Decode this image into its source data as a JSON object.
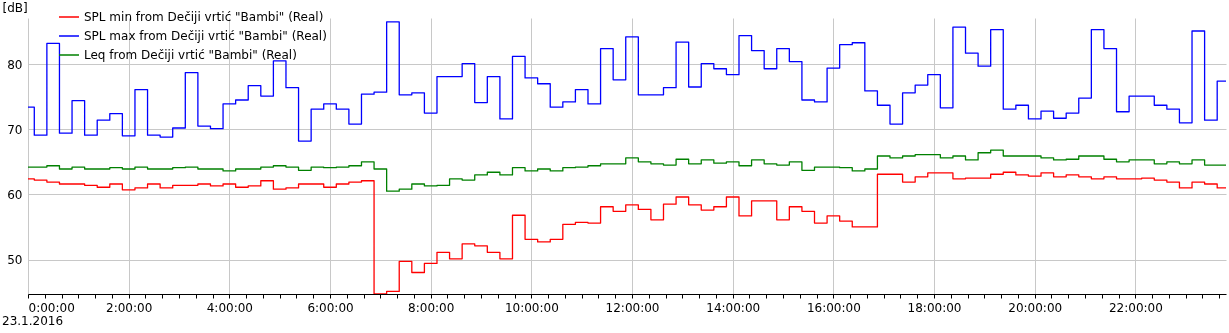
{
  "chart_data": {
    "type": "step",
    "ylabel": "[dB]",
    "annotations": [
      "23.1.2016"
    ],
    "xlim": [
      0,
      23.8
    ],
    "ylim": [
      44.7,
      87.1
    ],
    "yticks": [
      50,
      60,
      70,
      80
    ],
    "xticks": [
      {
        "value": 0,
        "label": "0:00:00"
      },
      {
        "value": 0.333,
        "label": null
      },
      {
        "value": 0.667,
        "label": null
      },
      {
        "value": 1,
        "label": null
      },
      {
        "value": 1.333,
        "label": null
      },
      {
        "value": 1.667,
        "label": null
      },
      {
        "value": 2,
        "label": "2:00:00"
      },
      {
        "value": 2.333,
        "label": null
      },
      {
        "value": 2.667,
        "label": null
      },
      {
        "value": 3,
        "label": null
      },
      {
        "value": 3.333,
        "label": null
      },
      {
        "value": 3.667,
        "label": null
      },
      {
        "value": 4,
        "label": "4:00:00"
      },
      {
        "value": 4.333,
        "label": null
      },
      {
        "value": 4.667,
        "label": null
      },
      {
        "value": 5,
        "label": null
      },
      {
        "value": 5.333,
        "label": null
      },
      {
        "value": 5.667,
        "label": null
      },
      {
        "value": 6,
        "label": "6:00:00"
      },
      {
        "value": 6.333,
        "label": null
      },
      {
        "value": 6.667,
        "label": null
      },
      {
        "value": 7,
        "label": null
      },
      {
        "value": 7.333,
        "label": null
      },
      {
        "value": 7.667,
        "label": null
      },
      {
        "value": 8,
        "label": "8:00:00"
      },
      {
        "value": 8.333,
        "label": null
      },
      {
        "value": 8.667,
        "label": null
      },
      {
        "value": 9,
        "label": null
      },
      {
        "value": 9.333,
        "label": null
      },
      {
        "value": 9.667,
        "label": null
      },
      {
        "value": 10,
        "label": "10:00:00"
      },
      {
        "value": 10.333,
        "label": null
      },
      {
        "value": 10.667,
        "label": null
      },
      {
        "value": 11,
        "label": null
      },
      {
        "value": 11.333,
        "label": null
      },
      {
        "value": 11.667,
        "label": null
      },
      {
        "value": 12,
        "label": "12:00:00"
      },
      {
        "value": 12.333,
        "label": null
      },
      {
        "value": 12.667,
        "label": null
      },
      {
        "value": 13,
        "label": null
      },
      {
        "value": 13.333,
        "label": null
      },
      {
        "value": 13.667,
        "label": null
      },
      {
        "value": 14,
        "label": "14:00:00"
      },
      {
        "value": 14.333,
        "label": null
      },
      {
        "value": 14.667,
        "label": null
      },
      {
        "value": 15,
        "label": null
      },
      {
        "value": 15.333,
        "label": null
      },
      {
        "value": 15.667,
        "label": null
      },
      {
        "value": 16,
        "label": "16:00:00"
      },
      {
        "value": 16.333,
        "label": null
      },
      {
        "value": 16.667,
        "label": null
      },
      {
        "value": 17,
        "label": null
      },
      {
        "value": 17.333,
        "label": null
      },
      {
        "value": 17.667,
        "label": null
      },
      {
        "value": 18,
        "label": "18:00:00"
      },
      {
        "value": 18.333,
        "label": null
      },
      {
        "value": 18.667,
        "label": null
      },
      {
        "value": 19,
        "label": null
      },
      {
        "value": 19.333,
        "label": null
      },
      {
        "value": 19.667,
        "label": null
      },
      {
        "value": 20,
        "label": "20:00:00"
      },
      {
        "value": 20.333,
        "label": null
      },
      {
        "value": 20.667,
        "label": null
      },
      {
        "value": 21,
        "label": null
      },
      {
        "value": 21.333,
        "label": null
      },
      {
        "value": 21.667,
        "label": null
      },
      {
        "value": 22,
        "label": "22:00:00"
      },
      {
        "value": 22.333,
        "label": null
      },
      {
        "value": 22.667,
        "label": null
      },
      {
        "value": 23,
        "label": null
      },
      {
        "value": 23.333,
        "label": null
      },
      {
        "value": 23.667,
        "label": null
      }
    ],
    "grid": true,
    "legend": "top left",
    "line_style": "solid",
    "marker": "none",
    "series": [
      {
        "name": "SPL min from Dečiji vrtić \"Bambi\" (Real)",
        "color": "#ff0000",
        "x": [
          0,
          0.125,
          0.375,
          0.625,
          1.125,
          1.375,
          1.625,
          1.875,
          2.125,
          2.375,
          2.625,
          2.875,
          3.375,
          3.625,
          3.875,
          4.125,
          4.375,
          4.625,
          4.875,
          5.125,
          5.375,
          5.875,
          6.125,
          6.375,
          6.625,
          6.875,
          7.125,
          7.375,
          7.625,
          7.875,
          8.125,
          8.375,
          8.625,
          8.875,
          9.125,
          9.375,
          9.625,
          9.875,
          10.125,
          10.375,
          10.625,
          10.875,
          11.125,
          11.375,
          11.625,
          11.875,
          12.125,
          12.375,
          12.625,
          12.875,
          13.125,
          13.375,
          13.625,
          13.875,
          14.125,
          14.375,
          14.875,
          15.125,
          15.375,
          15.625,
          15.875,
          16.125,
          16.375,
          16.875,
          17.375,
          17.625,
          17.875,
          18.375,
          18.625,
          19.125,
          19.375,
          19.625,
          19.875,
          20.125,
          20.375,
          20.625,
          20.875,
          21.125,
          21.375,
          21.625,
          22.125,
          22.375,
          22.625,
          22.875,
          23.125,
          23.375,
          23.625,
          23.8
        ],
        "values": [
          62.4,
          62.2,
          61.9,
          61.6,
          61.4,
          61.1,
          61.6,
          60.7,
          61.0,
          61.6,
          61.0,
          61.4,
          61.6,
          61.3,
          61.6,
          61.1,
          61.3,
          62.1,
          60.8,
          61.0,
          61.6,
          61.1,
          61.6,
          61.9,
          62.1,
          44.7,
          45.1,
          49.7,
          48.0,
          49.4,
          51.1,
          50.1,
          52.4,
          52.1,
          51.1,
          50.1,
          56.8,
          53.1,
          52.7,
          53.1,
          55.4,
          55.7,
          55.6,
          58.1,
          57.4,
          58.4,
          57.7,
          56.1,
          58.5,
          59.6,
          58.4,
          57.6,
          58.1,
          59.6,
          56.7,
          59.0,
          56.1,
          58.1,
          57.4,
          55.6,
          56.7,
          55.9,
          55.0,
          63.1,
          61.9,
          62.7,
          63.3,
          62.4,
          62.5,
          63.1,
          63.4,
          63.0,
          62.8,
          63.3,
          62.7,
          63.0,
          62.7,
          62.4,
          62.7,
          62.4,
          62.5,
          62.2,
          61.9,
          61.0,
          61.9,
          61.6,
          61.0,
          61.0
        ]
      },
      {
        "name": "SPL max from Dečiji vrtić \"Bambi\" (Real)",
        "color": "#0000ff",
        "x": [
          0,
          0.125,
          0.375,
          0.625,
          0.875,
          1.125,
          1.375,
          1.625,
          1.875,
          2.125,
          2.375,
          2.625,
          2.875,
          3.125,
          3.375,
          3.625,
          3.875,
          4.125,
          4.375,
          4.625,
          4.875,
          5.125,
          5.375,
          5.625,
          5.875,
          6.125,
          6.375,
          6.625,
          6.875,
          7.125,
          7.375,
          7.625,
          7.875,
          8.125,
          8.625,
          8.875,
          9.125,
          9.375,
          9.625,
          9.875,
          10.125,
          10.375,
          10.625,
          10.875,
          11.125,
          11.375,
          11.625,
          11.875,
          12.125,
          12.625,
          12.875,
          13.125,
          13.375,
          13.625,
          13.875,
          14.125,
          14.375,
          14.625,
          14.875,
          15.125,
          15.375,
          15.625,
          15.875,
          16.125,
          16.375,
          16.625,
          16.875,
          17.125,
          17.375,
          17.625,
          17.875,
          18.125,
          18.375,
          18.625,
          18.875,
          19.125,
          19.375,
          19.625,
          19.875,
          20.125,
          20.375,
          20.625,
          20.875,
          21.125,
          21.375,
          21.625,
          21.875,
          22.375,
          22.625,
          22.875,
          23.125,
          23.375,
          23.625,
          23.8
        ],
        "values": [
          73.4,
          69.1,
          83.2,
          69.4,
          74.4,
          69.1,
          71.4,
          72.4,
          69.0,
          76.1,
          69.1,
          68.8,
          70.2,
          78.7,
          70.5,
          70.1,
          73.9,
          74.5,
          76.7,
          75.1,
          80.5,
          76.4,
          68.2,
          73.1,
          73.9,
          73.1,
          70.8,
          75.4,
          75.7,
          86.5,
          75.3,
          75.6,
          72.5,
          78.1,
          80.1,
          74.1,
          78.1,
          71.6,
          81.2,
          77.9,
          77.0,
          73.4,
          74.2,
          76.1,
          73.9,
          82.4,
          77.6,
          84.2,
          75.3,
          76.4,
          83.4,
          76.5,
          80.1,
          79.3,
          78.4,
          84.4,
          82.1,
          79.3,
          82.4,
          80.4,
          74.5,
          74.2,
          79.4,
          83.0,
          83.3,
          75.9,
          73.7,
          70.8,
          75.6,
          76.8,
          78.4,
          73.3,
          85.7,
          81.7,
          79.7,
          85.3,
          73.1,
          73.7,
          71.6,
          72.8,
          71.7,
          72.5,
          74.8,
          85.3,
          82.4,
          72.7,
          75.1,
          73.7,
          73.1,
          71.0,
          85.1,
          71.4,
          77.4,
          77.4
        ]
      },
      {
        "name": "Leq from Dečiji vrtić \"Bambi\" (Real)",
        "color": "#008000",
        "x": [
          0,
          0.375,
          0.625,
          0.875,
          1.125,
          1.625,
          1.875,
          2.125,
          2.375,
          2.875,
          3.125,
          3.375,
          3.875,
          4.125,
          4.625,
          4.875,
          5.125,
          5.375,
          5.625,
          5.875,
          6.125,
          6.375,
          6.625,
          6.875,
          7.125,
          7.375,
          7.625,
          7.875,
          8.125,
          8.375,
          8.625,
          8.875,
          9.125,
          9.375,
          9.625,
          9.875,
          10.125,
          10.375,
          10.625,
          10.875,
          11.125,
          11.375,
          11.875,
          12.125,
          12.375,
          12.625,
          12.875,
          13.125,
          13.375,
          13.625,
          13.875,
          14.125,
          14.375,
          14.625,
          14.875,
          15.125,
          15.375,
          15.625,
          16.125,
          16.375,
          16.625,
          16.875,
          17.125,
          17.375,
          17.625,
          18.125,
          18.375,
          18.625,
          18.875,
          19.125,
          19.375,
          20.125,
          20.375,
          20.625,
          20.875,
          21.375,
          21.625,
          21.875,
          22.375,
          22.625,
          22.875,
          23.125,
          23.375,
          23.8
        ],
        "values": [
          64.2,
          64.4,
          63.9,
          64.2,
          63.9,
          64.1,
          63.9,
          64.2,
          63.9,
          64.1,
          64.2,
          63.9,
          63.6,
          63.9,
          64.2,
          64.4,
          64.2,
          63.7,
          64.2,
          64.1,
          64.2,
          64.4,
          65.0,
          63.9,
          60.5,
          60.8,
          61.6,
          61.3,
          61.4,
          62.4,
          62.2,
          63.0,
          63.4,
          63.0,
          64.1,
          63.6,
          63.9,
          63.6,
          64.1,
          64.2,
          64.4,
          64.7,
          65.6,
          65.0,
          64.7,
          64.5,
          65.4,
          64.7,
          65.3,
          64.8,
          65.0,
          64.4,
          65.3,
          64.7,
          64.5,
          65.0,
          63.7,
          64.2,
          64.1,
          63.6,
          63.9,
          65.9,
          65.6,
          65.9,
          66.1,
          65.6,
          65.9,
          65.3,
          66.4,
          66.8,
          65.9,
          65.6,
          65.3,
          65.4,
          65.9,
          65.4,
          65.0,
          65.3,
          64.7,
          65.0,
          64.7,
          65.3,
          64.5,
          64.5
        ]
      }
    ]
  }
}
